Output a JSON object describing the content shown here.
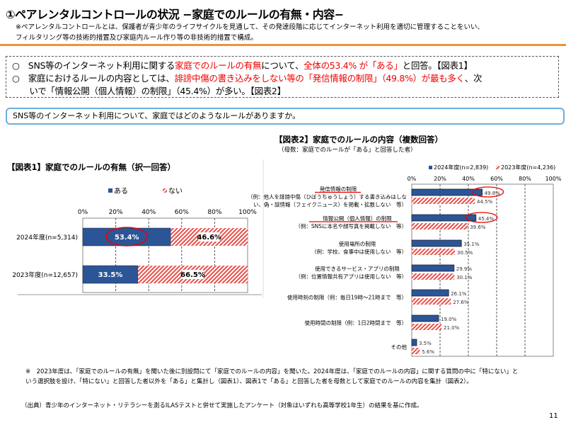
{
  "header": {
    "title": "①ペアレンタルコントロールの状況 −家庭でのルールの有無・内容−",
    "note_line1": "※ペアレンタルコントロールとは、保護者が青少年のライフサイクルを見通して、その発達段階に応じてインターネット利用を適切に管理することをいい、",
    "note_line2": "フィルタリング等の技術的措置及び家庭内ルール作り等の非技術的措置で構成。"
  },
  "summary": {
    "line1": [
      {
        "t": "○　SNS等のインターネット利用に関する"
      },
      {
        "t": "家庭でのルールの有無",
        "red": true
      },
      {
        "t": "について、"
      },
      {
        "t": "全体の53.4% が「ある」",
        "red": true
      },
      {
        "t": "と回答。【図表1】"
      }
    ],
    "line2": [
      {
        "t": "○　家庭におけるルールの内容としては、"
      },
      {
        "t": "誹謗中傷の書き込みをしない等の「発信情報の制限」（49.8%）が最も多く",
        "red": true
      },
      {
        "t": "、次"
      }
    ],
    "line3": [
      {
        "t": "　　いで「情報公開（個人情報）の制限」（45.4%）が多い。【図表2】"
      }
    ]
  },
  "question": "SNS等のインターネット利用について、家庭ではどのようなルールがありますか。",
  "chart_data": [
    {
      "type": "bar",
      "stacked": true,
      "orientation": "horizontal",
      "title": "【図表1】家庭でのルールの有無（択一回答）",
      "categories": [
        "2024年度(n=5,314)",
        "2023年度(n=12,657)"
      ],
      "series": [
        {
          "name": "ある",
          "values": [
            53.4,
            33.5
          ],
          "color": "#2b5597"
        },
        {
          "name": "ない",
          "values": [
            46.6,
            66.5
          ],
          "color": "#e8514a",
          "pattern": "hatch"
        }
      ],
      "xlim": [
        0,
        100
      ],
      "ticks": [
        "0%",
        "20%",
        "40%",
        "60%",
        "80%",
        "100%"
      ],
      "legend": "top",
      "grid": true,
      "highlight": "53.4%"
    },
    {
      "type": "bar",
      "orientation": "horizontal",
      "title": "【図表2】家庭でのルールの内容（複数回答）",
      "subtitle": "（母数：家庭でのルールが「ある」と回答した者）",
      "categories": [
        {
          "lines": [
            "発信情報の制限",
            "（例：他人を誹謗中傷（ひぼうちゅうしょう）する書き込みはしな",
            "い、偽・誤情報（フェイクニュース）を掲載・拡散しない　等）"
          ],
          "underline": true
        },
        {
          "lines": [
            "情報公開（個人情報）の制限",
            "（例：SNSに本名や顔写真を掲載しない　等）"
          ],
          "underline": true
        },
        {
          "lines": [
            "使用場所の制限",
            "（例：学校、食事中は使用しない　等）"
          ]
        },
        {
          "lines": [
            "使用できるサービス・アプリの制限",
            "（例：位置情報共有アプリは使用しない　等）"
          ]
        },
        {
          "lines": [
            "使用時刻の制限（例：毎日19時～21時まで　等）"
          ]
        },
        {
          "lines": [
            "使用時間の制限（例：1日2時間まで　等）"
          ]
        },
        {
          "lines": [
            "その他"
          ]
        }
      ],
      "series": [
        {
          "name": "2024年度(n=2,839)",
          "values": [
            49.8,
            45.4,
            35.1,
            29.9,
            26.1,
            19.0,
            3.5
          ],
          "color": "#2b5597"
        },
        {
          "name": "2023年度(n=4,236)",
          "values": [
            44.5,
            39.6,
            30.5,
            30.1,
            27.6,
            21.0,
            5.6
          ],
          "color": "#e8514a",
          "pattern": "hatch"
        }
      ],
      "xlim": [
        0,
        100
      ],
      "ticks": [
        "0%",
        "20%",
        "40%",
        "60%",
        "80%",
        "100%"
      ],
      "legend": "top",
      "grid": true
    }
  ],
  "footnote1": "※　2023年度は、「家庭でのルールの有無」を聞いた後に別設問にて「家庭でのルールの内容」を聞いた。2024年度は、「家庭でのルールの内容」に関する質問の中に「特にない」と",
  "footnote2": "いう選択肢を設け、「特にない」と回答した者以外を「ある」と集計し（図表1）、図表1で「ある」と回答した者を母数として家庭でのルールの内容を集計（図表2）。",
  "source": "（出典）青少年のインターネット・リテラシーを測るILASテストと併せて実施したアンケート（対象はいずれも高等学校1年生）の結果を基に作成。",
  "page_number": "11"
}
